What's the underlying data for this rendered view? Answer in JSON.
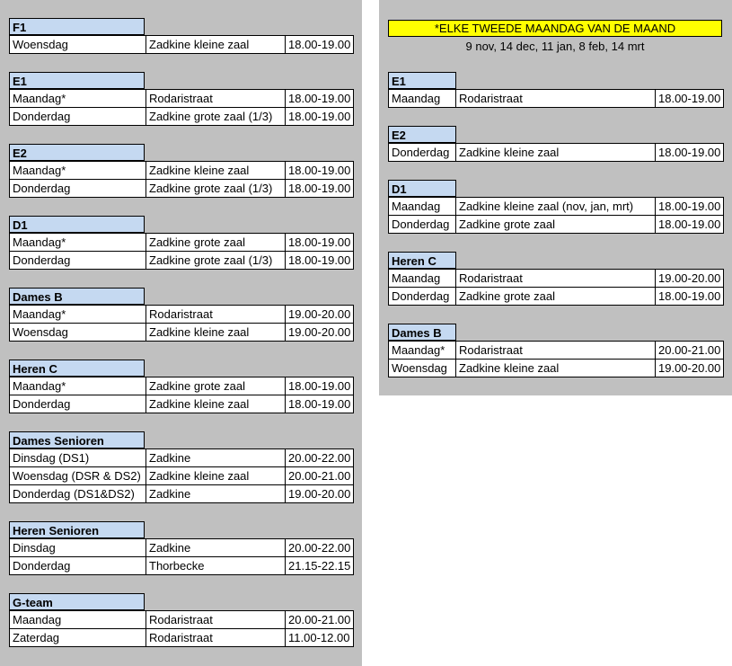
{
  "left_groups": [
    {
      "title": "F1",
      "rows": [
        [
          "Woensdag",
          "Zadkine kleine zaal",
          "18.00-19.00"
        ]
      ]
    },
    {
      "title": "E1",
      "rows": [
        [
          "Maandag*",
          "Rodaristraat",
          "18.00-19.00"
        ],
        [
          "Donderdag",
          "Zadkine grote zaal (1/3)",
          "18.00-19.00"
        ]
      ]
    },
    {
      "title": "E2",
      "rows": [
        [
          "Maandag*",
          "Zadkine kleine zaal",
          "18.00-19.00"
        ],
        [
          "Donderdag",
          "Zadkine grote zaal (1/3)",
          "18.00-19.00"
        ]
      ]
    },
    {
      "title": "D1",
      "rows": [
        [
          "Maandag*",
          "Zadkine grote zaal",
          "18.00-19.00"
        ],
        [
          "Donderdag",
          "Zadkine grote zaal (1/3)",
          "18.00-19.00"
        ]
      ]
    },
    {
      "title": "Dames B",
      "rows": [
        [
          "Maandag*",
          "Rodaristraat",
          "19.00-20.00"
        ],
        [
          "Woensdag",
          "Zadkine kleine zaal",
          "19.00-20.00"
        ]
      ]
    },
    {
      "title": "Heren C",
      "rows": [
        [
          "Maandag*",
          "Zadkine grote zaal",
          "18.00-19.00"
        ],
        [
          "Donderdag",
          "Zadkine kleine zaal",
          "18.00-19.00"
        ]
      ]
    },
    {
      "title": "Dames Senioren",
      "rows": [
        [
          "Dinsdag (DS1)",
          "Zadkine",
          "20.00-22.00"
        ],
        [
          "Woensdag (DSR & DS2)",
          "Zadkine kleine zaal",
          "20.00-21.00"
        ],
        [
          "Donderdag (DS1&DS2)",
          "Zadkine",
          "19.00-20.00"
        ]
      ]
    },
    {
      "title": "Heren Senioren",
      "rows": [
        [
          "Dinsdag",
          "Zadkine",
          "20.00-22.00"
        ],
        [
          "Donderdag",
          "Thorbecke",
          "21.15-22.15"
        ]
      ]
    },
    {
      "title": "G-team",
      "rows": [
        [
          "Maandag",
          "Rodaristraat",
          "20.00-21.00"
        ],
        [
          "Zaterdag",
          "Rodaristraat",
          "11.00-12.00"
        ]
      ]
    }
  ],
  "note": {
    "title": "*ELKE TWEEDE MAANDAG VAN DE MAAND",
    "dates": "9 nov, 14 dec, 11 jan, 8 feb, 14 mrt"
  },
  "right_groups": [
    {
      "title": "E1",
      "rows": [
        [
          "Maandag",
          "Rodaristraat",
          "18.00-19.00"
        ]
      ]
    },
    {
      "title": "E2",
      "rows": [
        [
          "Donderdag",
          "Zadkine kleine zaal",
          "18.00-19.00"
        ]
      ]
    },
    {
      "title": "D1",
      "rows": [
        [
          "Maandag",
          "Zadkine kleine zaal (nov, jan, mrt)",
          "18.00-19.00"
        ],
        [
          "Donderdag",
          "Zadkine grote zaal",
          "18.00-19.00"
        ]
      ]
    },
    {
      "title": "Heren C",
      "rows": [
        [
          "Maandag",
          "Rodaristraat",
          "19.00-20.00"
        ],
        [
          "Donderdag",
          "Zadkine grote zaal",
          "18.00-19.00"
        ]
      ]
    },
    {
      "title": "Dames B",
      "rows": [
        [
          "Maandag*",
          "Rodaristraat",
          "20.00-21.00"
        ],
        [
          "Woensdag",
          "Zadkine kleine zaal",
          "19.00-20.00"
        ]
      ]
    }
  ]
}
